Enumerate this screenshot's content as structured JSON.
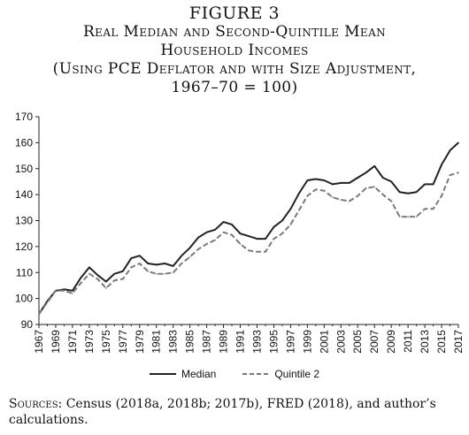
{
  "figure": {
    "label": "FIGURE 3",
    "title_lines": [
      "Real Median and Second-Quintile Mean",
      "Household Incomes",
      "(Using PCE Deflator and with Size Adjustment,",
      "1967–70 = 100)"
    ]
  },
  "source": {
    "lead": "Sources:",
    "text": "Census (2018a, 2018b; 2017b), FRED (2018), and author’s calculations."
  },
  "chart_data": {
    "type": "line",
    "ylim": [
      90,
      170
    ],
    "yticks": [
      90,
      100,
      110,
      120,
      130,
      140,
      150,
      160,
      170
    ],
    "xlim": [
      1967,
      2017
    ],
    "xticks": [
      1967,
      1969,
      1971,
      1973,
      1975,
      1977,
      1979,
      1981,
      1983,
      1985,
      1987,
      1989,
      1991,
      1993,
      1995,
      1997,
      1999,
      2001,
      2003,
      2005,
      2007,
      2009,
      2011,
      2013,
      2015,
      2017
    ],
    "grid": false,
    "legend_position": "bottom",
    "x": [
      1967,
      1968,
      1969,
      1970,
      1971,
      1972,
      1973,
      1974,
      1975,
      1976,
      1977,
      1978,
      1979,
      1980,
      1981,
      1982,
      1983,
      1984,
      1985,
      1986,
      1987,
      1988,
      1989,
      1990,
      1991,
      1992,
      1993,
      1994,
      1995,
      1996,
      1997,
      1998,
      1999,
      2000,
      2001,
      2002,
      2003,
      2004,
      2005,
      2006,
      2007,
      2008,
      2009,
      2010,
      2011,
      2012,
      2013,
      2014,
      2015,
      2016,
      2017
    ],
    "series": [
      {
        "name": "Median",
        "style": "solid",
        "color": "#222222",
        "values": [
          94,
          99,
          103,
          103.5,
          103,
          108,
          112,
          109,
          106.5,
          109.5,
          110.5,
          115.5,
          116.5,
          113.5,
          113,
          113.5,
          112.5,
          116.5,
          119.5,
          123.5,
          125.5,
          126.5,
          129.5,
          128.5,
          125,
          124,
          123,
          123,
          127.5,
          130,
          134.5,
          140.5,
          145.5,
          146,
          145.5,
          144,
          144.5,
          144.5,
          146.5,
          148.5,
          151,
          146.5,
          145,
          141,
          140.5,
          141,
          144,
          144,
          151.5,
          157,
          160
        ]
      },
      {
        "name": "Quintile 2",
        "style": "dashed",
        "color": "#7a7a7a",
        "values": [
          94,
          98.5,
          103,
          103,
          102,
          106,
          109.5,
          107.5,
          104,
          107,
          107.5,
          112,
          113.5,
          110.5,
          109.5,
          109.5,
          110,
          113.5,
          116,
          119,
          121,
          122.5,
          125.5,
          124.5,
          121,
          118.5,
          118,
          118,
          123,
          125,
          128.5,
          134,
          139.5,
          142,
          141.5,
          139,
          138,
          137.5,
          139.5,
          142.5,
          143,
          140,
          137.5,
          131.5,
          131.5,
          131.5,
          134.5,
          134.5,
          139.5,
          147.5,
          148.5
        ]
      }
    ]
  }
}
